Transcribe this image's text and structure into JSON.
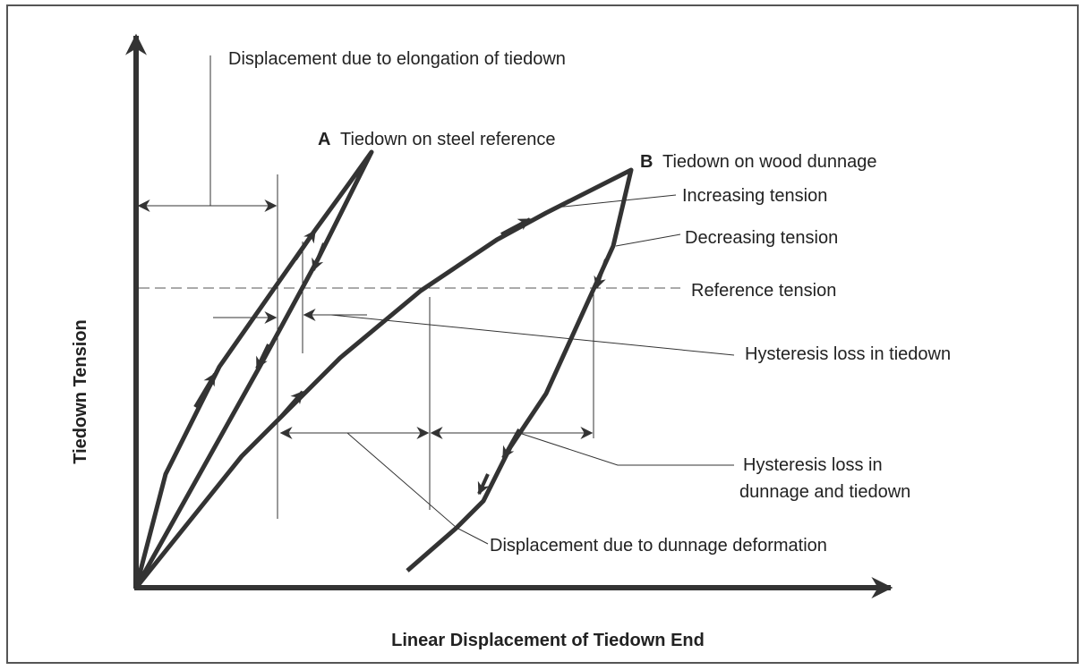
{
  "axes": {
    "x_label": "Linear Displacement of Tiedown End",
    "y_label": "Tiedown Tension"
  },
  "annotations": {
    "elongation": "Displacement due to elongation of tiedown",
    "curve_a": {
      "letter": "A",
      "text": "Tiedown on steel reference"
    },
    "curve_b": {
      "letter": "B",
      "text": "Tiedown on wood dunnage"
    },
    "increasing": "Increasing tension",
    "decreasing": "Decreasing tension",
    "reference": "Reference tension",
    "hysteresis_tiedown": "Hysteresis loss in tiedown",
    "hysteresis_dunnage": [
      "Hysteresis loss in",
      "dunnage and tiedown"
    ],
    "dunnage_deformation": "Displacement due to dunnage deformation"
  }
}
